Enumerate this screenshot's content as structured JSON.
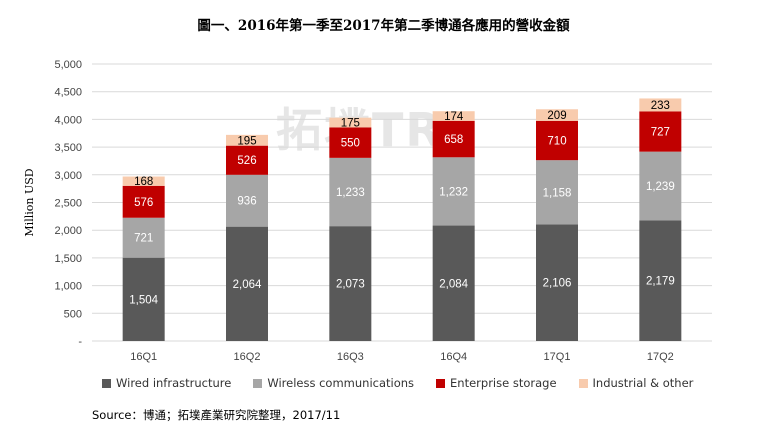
{
  "title": "圖一、2016年第一季至2017年第二季博通各應用的營收金額",
  "source": "Source：博通；拓墣產業研究院整理，2017/11",
  "watermark": "拓墣TRI",
  "chart_data": {
    "type": "bar",
    "stacked": true,
    "categories": [
      "16Q1",
      "16Q2",
      "16Q3",
      "16Q4",
      "17Q1",
      "17Q2"
    ],
    "ylabel": "Million USD",
    "ylim": [
      0,
      5000
    ],
    "yticks": [
      "-",
      "500",
      "1,000",
      "1,500",
      "2,000",
      "2,500",
      "3,000",
      "3,500",
      "4,000",
      "4,500",
      "5,000"
    ],
    "grid": true,
    "legend_position": "bottom",
    "series": [
      {
        "name": "Wired infrastructure",
        "color": "#595959",
        "label_color": "#ffffff",
        "values": [
          1504,
          2064,
          2073,
          2084,
          2106,
          2179
        ],
        "labels": [
          "1,504",
          "2,064",
          "2,073",
          "2,084",
          "2,106",
          "2,179"
        ]
      },
      {
        "name": "Wireless communications",
        "color": "#a6a6a6",
        "label_color": "#ffffff",
        "values": [
          721,
          936,
          1233,
          1232,
          1158,
          1239
        ],
        "labels": [
          "721",
          "936",
          "1,233",
          "1,232",
          "1,158",
          "1,239"
        ]
      },
      {
        "name": "Enterprise storage",
        "color": "#c00000",
        "label_color": "#ffffff",
        "values": [
          576,
          526,
          550,
          658,
          710,
          727
        ],
        "labels": [
          "576",
          "526",
          "550",
          "658",
          "710",
          "727"
        ]
      },
      {
        "name": "Industrial & other",
        "color": "#f8cbad",
        "label_color": "#000000",
        "values": [
          168,
          195,
          175,
          174,
          209,
          233
        ],
        "labels": [
          "168",
          "195",
          "175",
          "174",
          "209",
          "233"
        ]
      }
    ]
  }
}
